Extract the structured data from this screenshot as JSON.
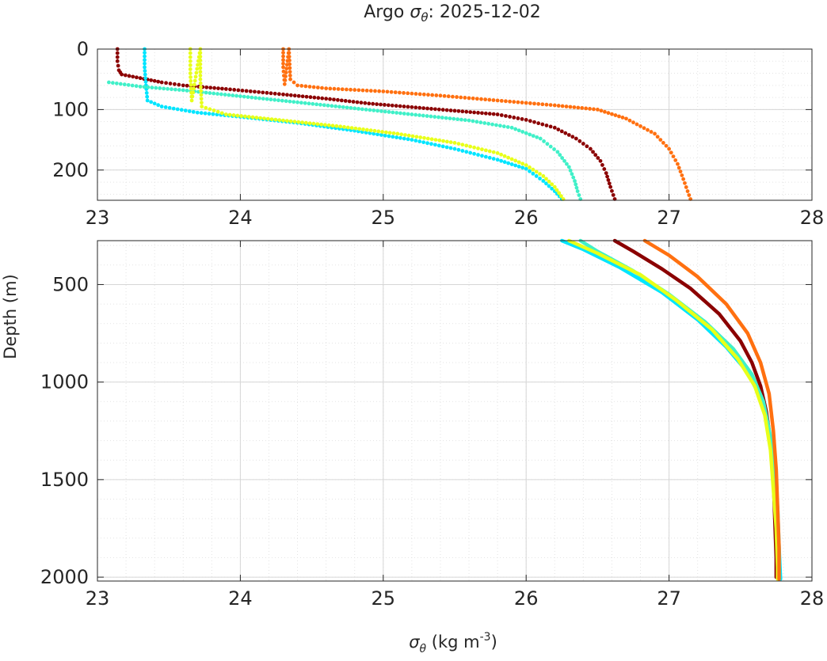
{
  "chart_data": {
    "type": "scatter",
    "title_prefix": "Argo ",
    "title_sym": "σ",
    "title_sub": "θ",
    "title_suffix": ": 2025-12-02",
    "xlabel_sym": "σ",
    "xlabel_sub": "θ",
    "xlabel_unit_pre": " (kg m",
    "xlabel_unit_sup": "-3",
    "xlabel_unit_post": ")",
    "ylabel": "Depth (m)",
    "grid": true,
    "minor_grid": true,
    "y_inverted": true,
    "panels": [
      {
        "name": "upper",
        "xlim": [
          23,
          28
        ],
        "ylim": [
          0,
          250
        ],
        "xticks": [
          "23",
          "24",
          "25",
          "26",
          "27",
          "28"
        ],
        "yticks": [
          "0",
          "100",
          "200"
        ]
      },
      {
        "name": "lower",
        "xlim": [
          23,
          28
        ],
        "ylim": [
          275,
          2020
        ],
        "xticks": [
          "23",
          "24",
          "25",
          "26",
          "27",
          "28"
        ],
        "yticks": [
          "500",
          "1000",
          "1500",
          "2000"
        ]
      }
    ],
    "series": [
      {
        "color": "#8b0000",
        "upper": [
          [
            23.14,
            0
          ],
          [
            23.14,
            20
          ],
          [
            23.15,
            35
          ],
          [
            23.17,
            42
          ],
          [
            23.3,
            48
          ],
          [
            23.45,
            55
          ],
          [
            23.6,
            60
          ],
          [
            23.9,
            66
          ],
          [
            24.3,
            75
          ],
          [
            24.6,
            82
          ],
          [
            24.9,
            90
          ],
          [
            25.2,
            96
          ],
          [
            25.5,
            102
          ],
          [
            25.8,
            108
          ],
          [
            26.0,
            117
          ],
          [
            26.2,
            130
          ],
          [
            26.35,
            148
          ],
          [
            26.45,
            165
          ],
          [
            26.52,
            185
          ],
          [
            26.56,
            205
          ],
          [
            26.59,
            228
          ],
          [
            26.62,
            248
          ]
        ],
        "lower": [
          [
            26.62,
            275
          ],
          [
            26.75,
            330
          ],
          [
            26.95,
            420
          ],
          [
            27.15,
            520
          ],
          [
            27.35,
            650
          ],
          [
            27.5,
            790
          ],
          [
            27.58,
            900
          ],
          [
            27.64,
            1020
          ],
          [
            27.68,
            1150
          ],
          [
            27.71,
            1300
          ],
          [
            27.73,
            1500
          ],
          [
            27.74,
            1700
          ],
          [
            27.75,
            1900
          ],
          [
            27.75,
            2000
          ]
        ]
      },
      {
        "color": "#00e5ff",
        "upper": [
          [
            23.33,
            0
          ],
          [
            23.33,
            30
          ],
          [
            23.34,
            60
          ],
          [
            23.35,
            85
          ],
          [
            23.45,
            95
          ],
          [
            23.7,
            105
          ],
          [
            24.0,
            112
          ],
          [
            24.4,
            122
          ],
          [
            24.8,
            135
          ],
          [
            25.2,
            150
          ],
          [
            25.5,
            165
          ],
          [
            25.8,
            183
          ],
          [
            26.0,
            198
          ],
          [
            26.12,
            218
          ],
          [
            26.2,
            235
          ],
          [
            26.25,
            248
          ]
        ],
        "lower": [
          [
            26.25,
            275
          ],
          [
            26.4,
            320
          ],
          [
            26.65,
            410
          ],
          [
            26.95,
            540
          ],
          [
            27.2,
            680
          ],
          [
            27.4,
            820
          ],
          [
            27.55,
            950
          ],
          [
            27.64,
            1080
          ],
          [
            27.7,
            1250
          ],
          [
            27.74,
            1450
          ],
          [
            27.76,
            1650
          ],
          [
            27.77,
            1850
          ],
          [
            27.78,
            2010
          ]
        ]
      },
      {
        "color": "#40f0c8",
        "upper": [
          [
            23.08,
            55
          ],
          [
            23.3,
            62
          ],
          [
            23.6,
            68
          ],
          [
            24.0,
            78
          ],
          [
            24.4,
            88
          ],
          [
            24.8,
            98
          ],
          [
            25.2,
            108
          ],
          [
            25.6,
            118
          ],
          [
            25.9,
            130
          ],
          [
            26.1,
            148
          ],
          [
            26.22,
            170
          ],
          [
            26.3,
            195
          ],
          [
            26.34,
            218
          ],
          [
            26.36,
            235
          ],
          [
            26.38,
            248
          ]
        ],
        "lower": [
          [
            26.38,
            275
          ],
          [
            26.5,
            330
          ],
          [
            26.75,
            430
          ],
          [
            27.0,
            550
          ],
          [
            27.25,
            690
          ],
          [
            27.45,
            830
          ],
          [
            27.58,
            960
          ],
          [
            27.66,
            1100
          ],
          [
            27.71,
            1280
          ],
          [
            27.74,
            1480
          ],
          [
            27.76,
            1680
          ],
          [
            27.77,
            1880
          ],
          [
            27.77,
            2010
          ]
        ]
      },
      {
        "color": "#e8ff1a",
        "upper": [
          [
            23.65,
            0
          ],
          [
            23.65,
            40
          ],
          [
            23.66,
            85
          ],
          [
            23.72,
            0
          ],
          [
            23.72,
            50
          ],
          [
            23.73,
            95
          ],
          [
            23.9,
            108
          ],
          [
            24.3,
            118
          ],
          [
            24.7,
            128
          ],
          [
            25.1,
            140
          ],
          [
            25.5,
            155
          ],
          [
            25.8,
            172
          ],
          [
            26.0,
            192
          ],
          [
            26.12,
            210
          ],
          [
            26.2,
            228
          ],
          [
            26.26,
            248
          ]
        ],
        "lower": [
          [
            26.3,
            275
          ],
          [
            26.5,
            340
          ],
          [
            26.8,
            450
          ],
          [
            27.05,
            580
          ],
          [
            27.3,
            730
          ],
          [
            27.48,
            880
          ],
          [
            27.6,
            1020
          ],
          [
            27.67,
            1170
          ],
          [
            27.71,
            1350
          ],
          [
            27.73,
            1550
          ],
          [
            27.75,
            1750
          ],
          [
            27.76,
            1950
          ],
          [
            27.76,
            2010
          ]
        ]
      },
      {
        "color": "#ff7010",
        "upper": [
          [
            24.3,
            0
          ],
          [
            24.3,
            30
          ],
          [
            24.31,
            58
          ],
          [
            24.34,
            0
          ],
          [
            24.35,
            50
          ],
          [
            24.4,
            60
          ],
          [
            24.6,
            65
          ],
          [
            25.0,
            70
          ],
          [
            25.4,
            77
          ],
          [
            25.8,
            85
          ],
          [
            26.2,
            93
          ],
          [
            26.5,
            100
          ],
          [
            26.7,
            115
          ],
          [
            26.9,
            140
          ],
          [
            27.0,
            165
          ],
          [
            27.06,
            190
          ],
          [
            27.1,
            215
          ],
          [
            27.13,
            235
          ],
          [
            27.15,
            248
          ]
        ],
        "lower": [
          [
            26.83,
            275
          ],
          [
            27.0,
            350
          ],
          [
            27.2,
            460
          ],
          [
            27.4,
            600
          ],
          [
            27.55,
            750
          ],
          [
            27.64,
            900
          ],
          [
            27.7,
            1060
          ],
          [
            27.73,
            1250
          ],
          [
            27.75,
            1450
          ],
          [
            27.76,
            1650
          ],
          [
            27.77,
            1850
          ],
          [
            27.77,
            2010
          ]
        ]
      }
    ]
  }
}
